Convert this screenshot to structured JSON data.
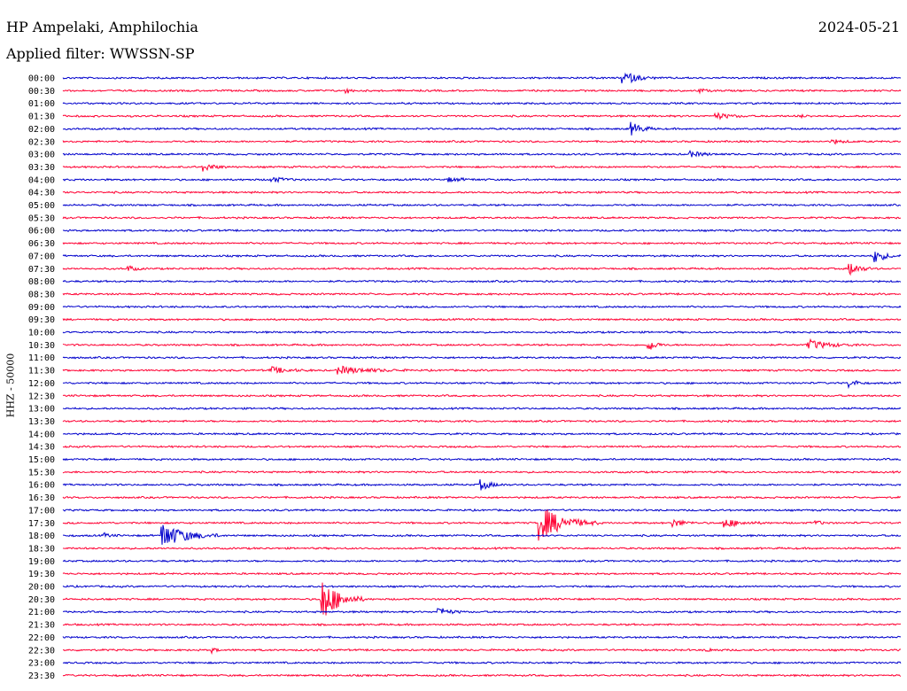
{
  "header": {
    "station": "HP Ampelaki, Amphilochia",
    "date": "2024-05-21",
    "filter": "Applied filter: WWSSN-SP"
  },
  "colors": {
    "even_trace": "#0000cc",
    "odd_trace": "#ff0033"
  },
  "chart_data": {
    "type": "line",
    "title": "HP Ampelaki, Amphilochia",
    "ylabel": "HHZ - 50000",
    "xlabel": "",
    "rows": [
      "00:00",
      "00:30",
      "01:00",
      "01:30",
      "02:00",
      "02:30",
      "03:00",
      "03:30",
      "04:00",
      "04:30",
      "05:00",
      "05:30",
      "06:00",
      "06:30",
      "07:00",
      "07:30",
      "08:00",
      "08:30",
      "09:00",
      "09:30",
      "10:00",
      "10:30",
      "11:00",
      "11:30",
      "12:00",
      "12:30",
      "13:00",
      "13:30",
      "14:00",
      "14:30",
      "15:00",
      "15:30",
      "16:00",
      "16:30",
      "17:00",
      "17:30",
      "18:00",
      "18:30",
      "19:00",
      "19:30",
      "20:00",
      "20:30",
      "21:00",
      "21:30",
      "22:00",
      "22:30",
      "23:00",
      "23:30"
    ],
    "events": [
      {
        "row": 0,
        "t": 0.67,
        "amp": 1.0,
        "dur": 0.04
      },
      {
        "row": 1,
        "t": 0.34,
        "amp": 0.4,
        "dur": 0.01
      },
      {
        "row": 1,
        "t": 0.76,
        "amp": 0.3,
        "dur": 0.02
      },
      {
        "row": 3,
        "t": 0.78,
        "amp": 0.5,
        "dur": 0.04
      },
      {
        "row": 3,
        "t": 0.88,
        "amp": 0.2,
        "dur": 0.02
      },
      {
        "row": 4,
        "t": 0.68,
        "amp": 1.0,
        "dur": 0.03
      },
      {
        "row": 5,
        "t": 0.92,
        "amp": 0.3,
        "dur": 0.03
      },
      {
        "row": 6,
        "t": 0.75,
        "amp": 0.4,
        "dur": 0.04
      },
      {
        "row": 7,
        "t": 0.17,
        "amp": 0.6,
        "dur": 0.03
      },
      {
        "row": 8,
        "t": 0.25,
        "amp": 0.4,
        "dur": 0.04
      },
      {
        "row": 8,
        "t": 0.46,
        "amp": 0.3,
        "dur": 0.05
      },
      {
        "row": 14,
        "t": 0.97,
        "amp": 1.0,
        "dur": 0.03
      },
      {
        "row": 15,
        "t": 0.08,
        "amp": 0.4,
        "dur": 0.02
      },
      {
        "row": 15,
        "t": 0.94,
        "amp": 1.0,
        "dur": 0.03
      },
      {
        "row": 21,
        "t": 0.7,
        "amp": 1.0,
        "dur": 0.02
      },
      {
        "row": 21,
        "t": 0.89,
        "amp": 0.8,
        "dur": 0.06
      },
      {
        "row": 23,
        "t": 0.25,
        "amp": 0.5,
        "dur": 0.05
      },
      {
        "row": 23,
        "t": 0.33,
        "amp": 0.6,
        "dur": 0.09
      },
      {
        "row": 24,
        "t": 0.94,
        "amp": 0.7,
        "dur": 0.02
      },
      {
        "row": 32,
        "t": 0.5,
        "amp": 0.8,
        "dur": 0.03
      },
      {
        "row": 35,
        "t": 0.57,
        "amp": 2.8,
        "dur": 0.07
      },
      {
        "row": 35,
        "t": 0.73,
        "amp": 0.6,
        "dur": 0.03
      },
      {
        "row": 35,
        "t": 0.79,
        "amp": 0.7,
        "dur": 0.05
      },
      {
        "row": 35,
        "t": 0.9,
        "amp": 0.3,
        "dur": 0.02
      },
      {
        "row": 36,
        "t": 0.12,
        "amp": 2.0,
        "dur": 0.07
      },
      {
        "row": 36,
        "t": 0.05,
        "amp": 0.3,
        "dur": 0.02
      },
      {
        "row": 41,
        "t": 0.31,
        "amp": 3.5,
        "dur": 0.05
      },
      {
        "row": 42,
        "t": 0.45,
        "amp": 0.7,
        "dur": 0.03
      },
      {
        "row": 45,
        "t": 0.18,
        "amp": 0.4,
        "dur": 0.01
      },
      {
        "row": 45,
        "t": 0.77,
        "amp": 0.2,
        "dur": 0.03
      }
    ]
  }
}
